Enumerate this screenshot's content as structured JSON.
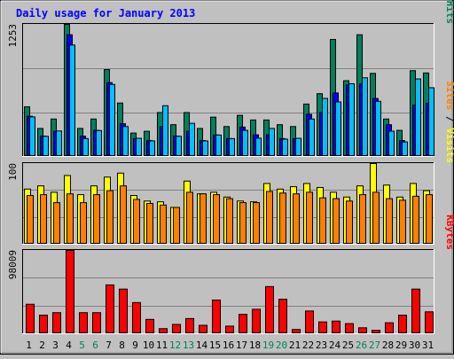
{
  "chart_data": [
    {
      "type": "bar",
      "title": "Daily usage for January 2013",
      "categories": [
        "1",
        "2",
        "3",
        "4",
        "5",
        "6",
        "7",
        "8",
        "9",
        "10",
        "11",
        "12",
        "13",
        "14",
        "15",
        "16",
        "17",
        "18",
        "19",
        "20",
        "21",
        "22",
        "23",
        "24",
        "25",
        "26",
        "27",
        "28",
        "29",
        "30",
        "31"
      ],
      "weekend_days": [
        "5",
        "6",
        "12",
        "13",
        "19",
        "20",
        "26",
        "27"
      ],
      "ylim": [
        0,
        1253
      ],
      "y_tick_label": "1253",
      "right_label": {
        "parts": [
          "Pages",
          "Files",
          "Hits"
        ],
        "separator": " / "
      },
      "series": [
        {
          "name": "Hits",
          "color": "#00805c",
          "values": [
            466,
            259,
            349,
            1253,
            259,
            349,
            821,
            502,
            215,
            232,
            411,
            295,
            411,
            259,
            367,
            277,
            384,
            340,
            340,
            295,
            277,
            492,
            591,
            1109,
            715,
            1154,
            785,
            349,
            241,
            811,
            789
          ]
        },
        {
          "name": "Files",
          "color": "#0000ff",
          "values": [
            376,
            186,
            232,
            1154,
            186,
            241,
            697,
            304,
            162,
            143,
            277,
            186,
            232,
            143,
            197,
            162,
            272,
            198,
            198,
            162,
            162,
            394,
            411,
            598,
            675,
            683,
            545,
            295,
            143,
            482,
            499
          ]
        },
        {
          "name": "Pages",
          "color": "#00c0ff",
          "values": [
            369,
            184,
            235,
            1056,
            162,
            239,
            679,
            277,
            165,
            140,
            476,
            184,
            308,
            140,
            196,
            162,
            241,
            166,
            259,
            157,
            165,
            349,
            546,
            512,
            686,
            743,
            518,
            233,
            130,
            732,
            648
          ]
        }
      ]
    },
    {
      "type": "bar",
      "categories": [
        "1",
        "2",
        "3",
        "4",
        "5",
        "6",
        "7",
        "8",
        "9",
        "10",
        "11",
        "12",
        "13",
        "14",
        "15",
        "16",
        "17",
        "18",
        "19",
        "20",
        "21",
        "22",
        "23",
        "24",
        "25",
        "26",
        "27",
        "28",
        "29",
        "30",
        "31"
      ],
      "ylim": [
        0,
        100
      ],
      "y_tick_label": "100",
      "right_label": {
        "parts": [
          "Sites",
          "Visits"
        ],
        "separator": " / "
      },
      "series": [
        {
          "name": "Visits",
          "color": "#ffff00",
          "values": [
            68,
            72,
            64,
            85,
            61,
            72,
            83,
            88,
            60,
            53,
            52,
            45,
            78,
            62,
            64,
            58,
            53,
            52,
            75,
            68,
            71,
            75,
            70,
            64,
            58,
            72,
            100,
            73,
            58,
            75,
            66
          ]
        },
        {
          "name": "Sites",
          "color": "#ff8000",
          "values": [
            60,
            61,
            51,
            62,
            51,
            61,
            66,
            72,
            55,
            50,
            48,
            45,
            64,
            62,
            61,
            56,
            51,
            51,
            65,
            63,
            62,
            64,
            57,
            56,
            53,
            61,
            64,
            56,
            54,
            59,
            61
          ]
        }
      ]
    },
    {
      "type": "bar",
      "categories": [
        "1",
        "2",
        "3",
        "4",
        "5",
        "6",
        "7",
        "8",
        "9",
        "10",
        "11",
        "12",
        "13",
        "14",
        "15",
        "16",
        "17",
        "18",
        "19",
        "20",
        "21",
        "22",
        "23",
        "24",
        "25",
        "26",
        "27",
        "28",
        "29",
        "30",
        "31"
      ],
      "ylim": [
        0,
        98009
      ],
      "y_tick_label": "98009",
      "right_label": {
        "parts": [
          "KBytes"
        ],
        "separator": ""
      },
      "series": [
        {
          "name": "KBytes",
          "color": "#ff0000",
          "values": [
            34000,
            21000,
            24000,
            98009,
            24000,
            24000,
            57000,
            52000,
            36000,
            16000,
            5000,
            10000,
            17000,
            9000,
            39000,
            8000,
            22000,
            28000,
            55000,
            40000,
            4000,
            26000,
            13000,
            14000,
            11000,
            6000,
            3000,
            12000,
            21000,
            52000,
            25000
          ]
        }
      ]
    }
  ]
}
